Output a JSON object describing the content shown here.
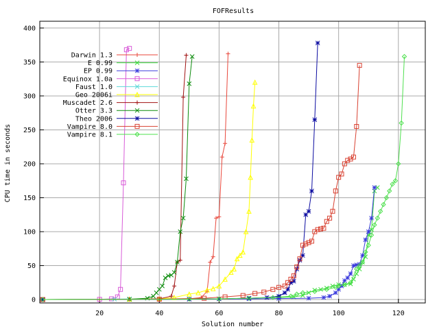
{
  "chart_data": {
    "type": "line",
    "title": "FOFResults",
    "xlabel": "Solution number",
    "ylabel": "CPU time in seconds",
    "xlim": [
      0,
      129
    ],
    "ylim": [
      -5,
      410
    ],
    "x_ticks": [
      20,
      40,
      60,
      80,
      100,
      120
    ],
    "y_ticks": [
      0,
      50,
      100,
      150,
      200,
      250,
      300,
      350,
      400
    ],
    "grid": true,
    "legend_position": "top-left",
    "series": [
      {
        "name": "Darwin 1.3",
        "color": "#e8463a",
        "marker": "plus",
        "points": [
          [
            1,
            0
          ],
          [
            20,
            0
          ],
          [
            40,
            0.5
          ],
          [
            50,
            1
          ],
          [
            54,
            3
          ],
          [
            56,
            12
          ],
          [
            57,
            55
          ],
          [
            58,
            63
          ],
          [
            59,
            120
          ],
          [
            60,
            122
          ],
          [
            61,
            210
          ],
          [
            62,
            230
          ],
          [
            63,
            362
          ]
        ]
      },
      {
        "name": "E 0.99",
        "color": "#3ddc3d",
        "marker": "x",
        "points": [
          [
            1,
            0
          ],
          [
            40,
            0.5
          ],
          [
            60,
            1
          ],
          [
            70,
            2
          ],
          [
            80,
            3
          ],
          [
            85,
            4
          ],
          [
            88,
            6
          ],
          [
            90,
            10
          ],
          [
            92,
            14
          ],
          [
            94,
            15
          ],
          [
            96,
            17
          ],
          [
            98,
            20
          ],
          [
            100,
            22
          ],
          [
            102,
            22
          ],
          [
            104,
            23
          ],
          [
            105,
            30
          ],
          [
            106,
            38
          ],
          [
            107,
            45
          ],
          [
            108,
            55
          ],
          [
            109,
            63
          ],
          [
            110,
            95
          ],
          [
            111,
            103
          ],
          [
            112,
            160
          ],
          [
            113,
            165
          ]
        ]
      },
      {
        "name": "EP 0.99",
        "color": "#3a3adc",
        "marker": "star",
        "points": [
          [
            1,
            0
          ],
          [
            50,
            0.5
          ],
          [
            70,
            1
          ],
          [
            80,
            1.5
          ],
          [
            90,
            2
          ],
          [
            95,
            3
          ],
          [
            97,
            5
          ],
          [
            99,
            10
          ],
          [
            100,
            15
          ],
          [
            101,
            20
          ],
          [
            102,
            28
          ],
          [
            103,
            32
          ],
          [
            104,
            38
          ],
          [
            105,
            50
          ],
          [
            106,
            51
          ],
          [
            107,
            52
          ],
          [
            108,
            65
          ],
          [
            109,
            88
          ],
          [
            110,
            100
          ],
          [
            111,
            120
          ],
          [
            112,
            165
          ]
        ]
      },
      {
        "name": "Equinox 1.0a",
        "color": "#d85ad8",
        "marker": "square",
        "points": [
          [
            1,
            0
          ],
          [
            20,
            0.3
          ],
          [
            24,
            1
          ],
          [
            26,
            4
          ],
          [
            27,
            15
          ],
          [
            28,
            172
          ],
          [
            29,
            368
          ],
          [
            30,
            370
          ]
        ]
      },
      {
        "name": "Faust 1.0",
        "color": "#5ad8d8",
        "marker": "cross",
        "points": [
          [
            1,
            0
          ],
          [
            25,
            0.5
          ],
          [
            30,
            1
          ]
        ]
      },
      {
        "name": "Geo 2006i",
        "color": "#ffff00",
        "marker": "triangle",
        "points": [
          [
            1,
            0
          ],
          [
            30,
            0.5
          ],
          [
            40,
            1
          ],
          [
            45,
            3
          ],
          [
            50,
            8
          ],
          [
            53,
            10
          ],
          [
            56,
            14
          ],
          [
            58,
            16
          ],
          [
            60,
            20
          ],
          [
            62,
            30
          ],
          [
            64,
            40
          ],
          [
            65,
            45
          ],
          [
            66,
            60
          ],
          [
            67,
            65
          ],
          [
            68,
            70
          ],
          [
            69,
            100
          ],
          [
            70,
            130
          ],
          [
            70.5,
            180
          ],
          [
            71,
            235
          ],
          [
            71.5,
            285
          ],
          [
            72,
            320
          ]
        ]
      },
      {
        "name": "Muscadet 2.6",
        "color": "#a01010",
        "marker": "plus",
        "points": [
          [
            1,
            0
          ],
          [
            30,
            0.5
          ],
          [
            40,
            1
          ],
          [
            44,
            5
          ],
          [
            45,
            20
          ],
          [
            46,
            55
          ],
          [
            47,
            58
          ],
          [
            48,
            298
          ],
          [
            49,
            360
          ]
        ]
      },
      {
        "name": "Otter 3.3",
        "color": "#0a8a0a",
        "marker": "x",
        "points": [
          [
            1,
            0
          ],
          [
            30,
            0.5
          ],
          [
            36,
            2
          ],
          [
            38,
            5
          ],
          [
            39,
            10
          ],
          [
            40,
            15
          ],
          [
            41,
            20
          ],
          [
            42,
            32
          ],
          [
            43,
            35
          ],
          [
            44,
            36
          ],
          [
            45,
            40
          ],
          [
            46,
            55
          ],
          [
            47,
            100
          ],
          [
            48,
            120
          ],
          [
            49,
            178
          ],
          [
            50,
            318
          ],
          [
            51,
            358
          ]
        ]
      },
      {
        "name": "Theo 2006",
        "color": "#0a0aa0",
        "marker": "star",
        "points": [
          [
            1,
            0
          ],
          [
            50,
            0.5
          ],
          [
            60,
            1
          ],
          [
            70,
            2
          ],
          [
            76,
            3
          ],
          [
            80,
            5
          ],
          [
            82,
            10
          ],
          [
            83,
            15
          ],
          [
            84,
            25
          ],
          [
            85,
            27
          ],
          [
            86,
            45
          ],
          [
            87,
            58
          ],
          [
            88,
            65
          ],
          [
            89,
            125
          ],
          [
            90,
            130
          ],
          [
            91,
            160
          ],
          [
            92,
            265
          ],
          [
            93,
            378
          ]
        ]
      },
      {
        "name": "Vampire 8.0",
        "color": "#d84030",
        "marker": "square",
        "points": [
          [
            1,
            0
          ],
          [
            40,
            0.5
          ],
          [
            55,
            2
          ],
          [
            62,
            4
          ],
          [
            68,
            6
          ],
          [
            72,
            9
          ],
          [
            75,
            11
          ],
          [
            78,
            15
          ],
          [
            80,
            18
          ],
          [
            82,
            20
          ],
          [
            83,
            25
          ],
          [
            84,
            30
          ],
          [
            85,
            35
          ],
          [
            86,
            48
          ],
          [
            87,
            60
          ],
          [
            88,
            80
          ],
          [
            89,
            82
          ],
          [
            90,
            84
          ],
          [
            91,
            86
          ],
          [
            92,
            100
          ],
          [
            93,
            103
          ],
          [
            94,
            104
          ],
          [
            95,
            105
          ],
          [
            96,
            115
          ],
          [
            97,
            120
          ],
          [
            98,
            130
          ],
          [
            99,
            160
          ],
          [
            100,
            180
          ],
          [
            101,
            185
          ],
          [
            102,
            200
          ],
          [
            103,
            205
          ],
          [
            104,
            207
          ],
          [
            105,
            210
          ],
          [
            106,
            255
          ],
          [
            107,
            345
          ]
        ]
      },
      {
        "name": "Vampire 8.1",
        "color": "#4ee04e",
        "marker": "diamond",
        "points": [
          [
            1,
            0
          ],
          [
            50,
            0.5
          ],
          [
            60,
            1
          ],
          [
            70,
            2
          ],
          [
            78,
            3
          ],
          [
            84,
            5
          ],
          [
            86,
            8
          ],
          [
            88,
            10
          ],
          [
            92,
            12
          ],
          [
            96,
            15
          ],
          [
            99,
            18
          ],
          [
            100,
            20
          ],
          [
            102,
            22
          ],
          [
            104,
            25
          ],
          [
            106,
            45
          ],
          [
            107,
            50
          ],
          [
            108,
            55
          ],
          [
            109,
            70
          ],
          [
            110,
            80
          ],
          [
            111,
            95
          ],
          [
            112,
            110
          ],
          [
            113,
            120
          ],
          [
            114,
            130
          ],
          [
            115,
            140
          ],
          [
            116,
            150
          ],
          [
            117,
            160
          ],
          [
            118,
            170
          ],
          [
            119,
            175
          ],
          [
            120,
            200
          ],
          [
            121,
            260
          ],
          [
            122,
            358
          ]
        ]
      }
    ]
  }
}
